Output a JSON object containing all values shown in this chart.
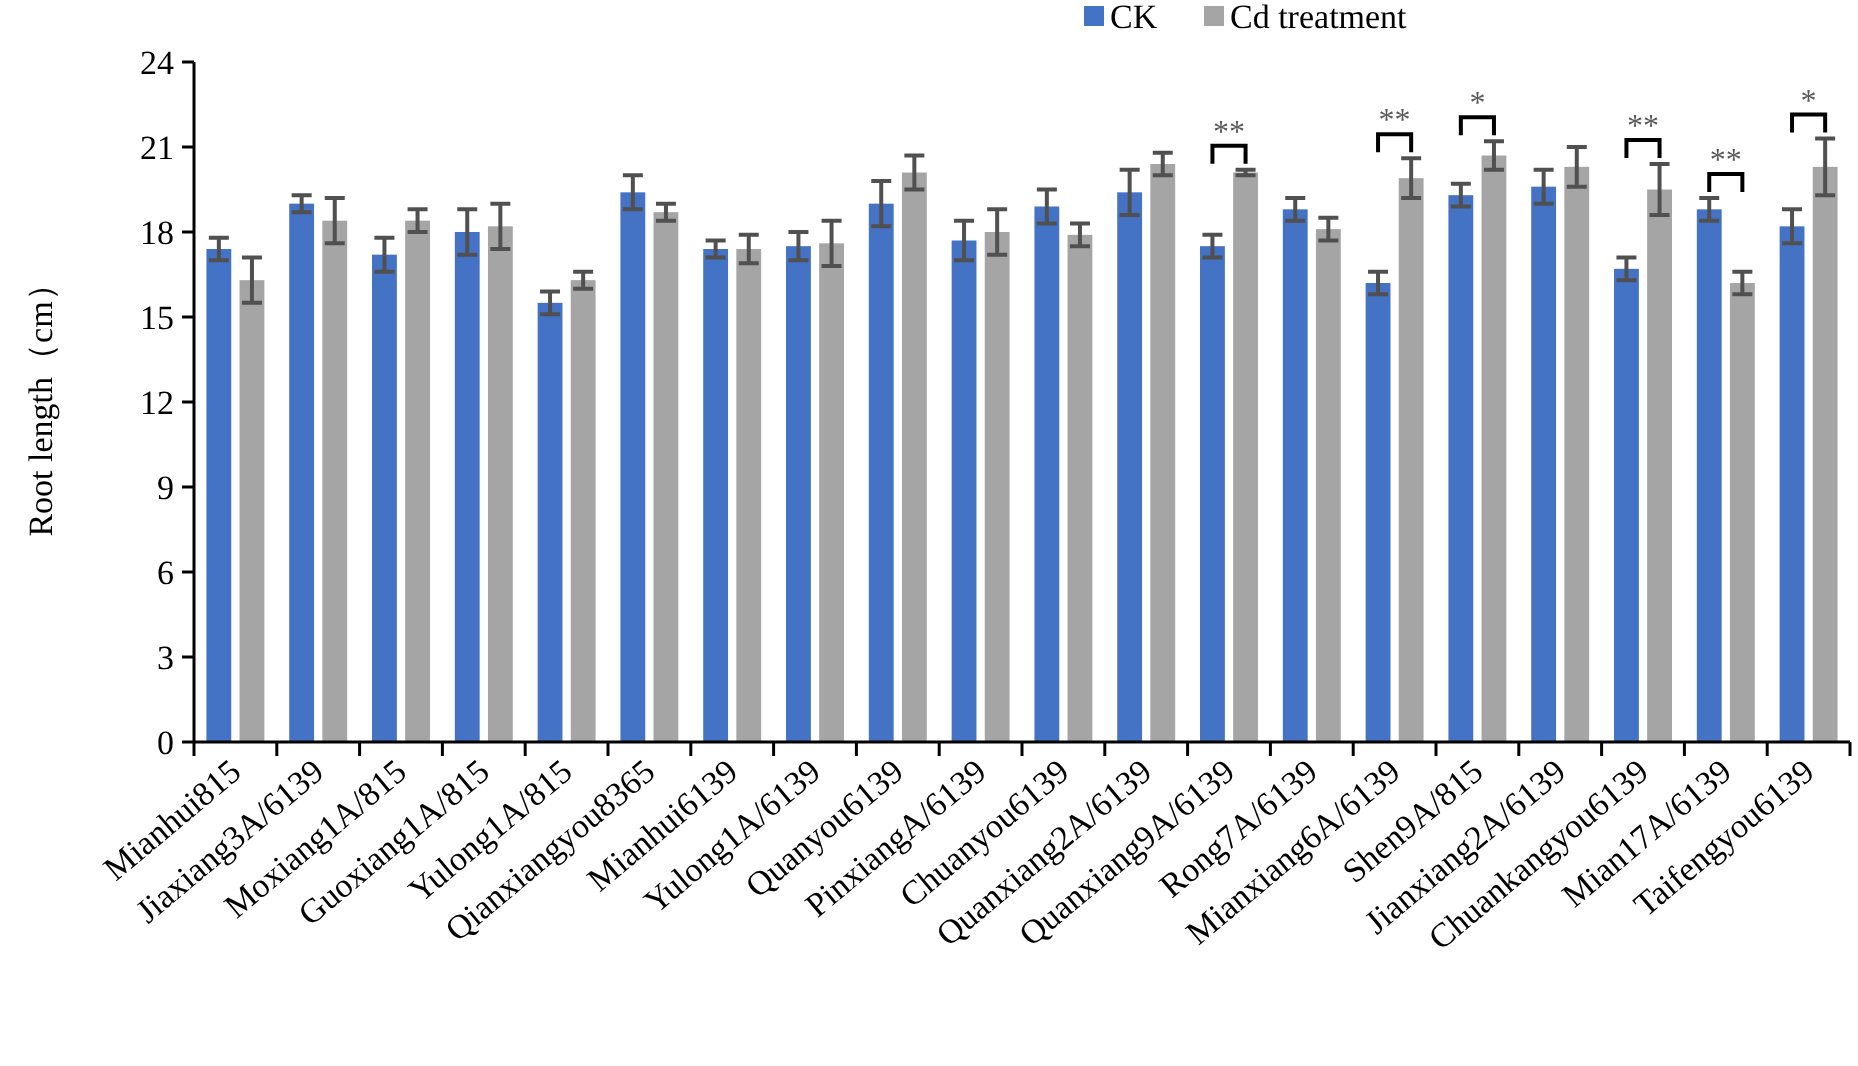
{
  "chart_data": {
    "type": "bar",
    "ylabel": "Root length（cm）",
    "categories": [
      "Mianhui815",
      "Jiaxiang3A/6139",
      "Moxiang1A/815",
      "Guoxiang1A/815",
      "Yulong1A/815",
      "Qianxiangyou8365",
      "Mianhui6139",
      "Yulong1A/6139",
      "Quanyou6139",
      "PinxiangA/6139",
      "Chuanyou6139",
      "Quanxiang2A/6139",
      "Quanxiang9A/6139",
      "Rong7A/6139",
      "Mianxiang6A/6139",
      "Shen9A/815",
      "Jianxiang2A/6139",
      "Chuankangyou6139",
      "Mian17A/6139",
      "Taifengyou6139"
    ],
    "series": [
      {
        "name": "CK",
        "color": "#4472c4",
        "values": [
          17.4,
          19.0,
          17.2,
          18.0,
          15.5,
          19.4,
          17.4,
          17.5,
          19.0,
          17.7,
          18.9,
          19.4,
          17.5,
          18.8,
          16.2,
          19.3,
          19.6,
          16.7,
          18.8,
          18.2
        ],
        "errors": [
          0.4,
          0.3,
          0.6,
          0.8,
          0.4,
          0.6,
          0.3,
          0.5,
          0.8,
          0.7,
          0.6,
          0.8,
          0.4,
          0.4,
          0.4,
          0.4,
          0.6,
          0.4,
          0.4,
          0.6
        ]
      },
      {
        "name": "Cd treatment",
        "color": "#a5a5a5",
        "values": [
          16.3,
          18.4,
          18.4,
          18.2,
          16.3,
          18.7,
          17.4,
          17.6,
          20.1,
          18.0,
          17.9,
          20.4,
          20.1,
          18.1,
          19.9,
          20.7,
          20.3,
          19.5,
          16.2,
          20.3
        ],
        "errors": [
          0.8,
          0.8,
          0.4,
          0.8,
          0.3,
          0.3,
          0.5,
          0.8,
          0.6,
          0.8,
          0.4,
          0.4,
          0.1,
          0.4,
          0.7,
          0.5,
          0.7,
          0.9,
          0.4,
          1.0
        ]
      }
    ],
    "ylim": [
      0,
      24
    ],
    "yticks": [
      0,
      3,
      6,
      9,
      12,
      15,
      18,
      21,
      24
    ],
    "grid": false,
    "legend": "top right",
    "annotations": [
      {
        "text": "**",
        "x": "Quanxiang9A/6139",
        "y": 20.1
      },
      {
        "text": "**",
        "x": "Mianxiang6A/6139",
        "y": 19.9
      },
      {
        "text": "*",
        "x": "Shen9A/815",
        "y": 20.7
      },
      {
        "text": "**",
        "x": "Chuankangyou6139",
        "y": 19.5
      },
      {
        "text": "**",
        "x": "Mian17A/6139",
        "y": 18.8
      },
      {
        "text": "*",
        "x": "Taifengyou6139",
        "y": 20.3
      }
    ]
  }
}
